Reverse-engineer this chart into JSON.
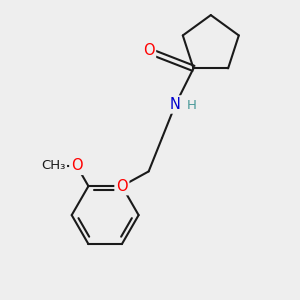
{
  "background_color": "#eeeeee",
  "bond_color": "#1a1a1a",
  "figsize": [
    3.0,
    3.0
  ],
  "dpi": 100,
  "atom_colors": {
    "O": "#ff0000",
    "N": "#0000cc",
    "H": "#4a9a9a",
    "C": "#1a1a1a"
  },
  "font_size_atoms": 10.5,
  "font_size_H": 9.5,
  "lw": 1.5,
  "xlim": [
    -0.6,
    2.8
  ],
  "ylim": [
    -1.6,
    2.8
  ]
}
